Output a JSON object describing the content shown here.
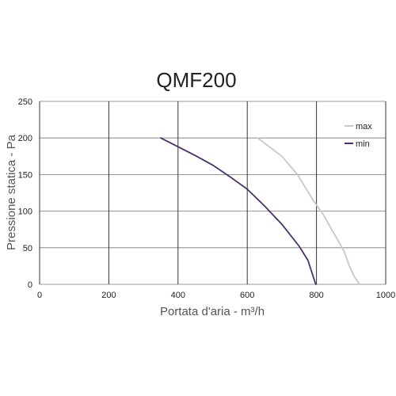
{
  "chart_data": {
    "type": "line",
    "title": "QMF200",
    "xlabel": "Portata d'aria - m³/h",
    "ylabel": "Pressione statica - Pa",
    "xlim": [
      0,
      1000
    ],
    "ylim": [
      0,
      250
    ],
    "xticks": [
      "0",
      "200",
      "400",
      "600",
      "800",
      "1000"
    ],
    "yticks": [
      "0",
      "50",
      "100",
      "150",
      "200",
      "250"
    ],
    "grid": true,
    "legend_position": "top-right",
    "series": [
      {
        "name": "max",
        "color": "#c8c5d2",
        "points": [
          [
            630,
            200
          ],
          [
            700,
            175
          ],
          [
            745,
            150
          ],
          [
            790,
            115
          ],
          [
            820,
            95
          ],
          [
            850,
            70
          ],
          [
            880,
            45
          ],
          [
            895,
            25
          ],
          [
            910,
            10
          ],
          [
            925,
            0
          ]
        ]
      },
      {
        "name": "min",
        "color": "#4b2f6e",
        "points": [
          [
            350,
            200
          ],
          [
            400,
            188
          ],
          [
            450,
            176
          ],
          [
            500,
            163
          ],
          [
            550,
            147
          ],
          [
            600,
            130
          ],
          [
            650,
            107
          ],
          [
            700,
            82
          ],
          [
            750,
            52
          ],
          [
            775,
            33
          ],
          [
            798,
            0
          ]
        ]
      }
    ]
  }
}
